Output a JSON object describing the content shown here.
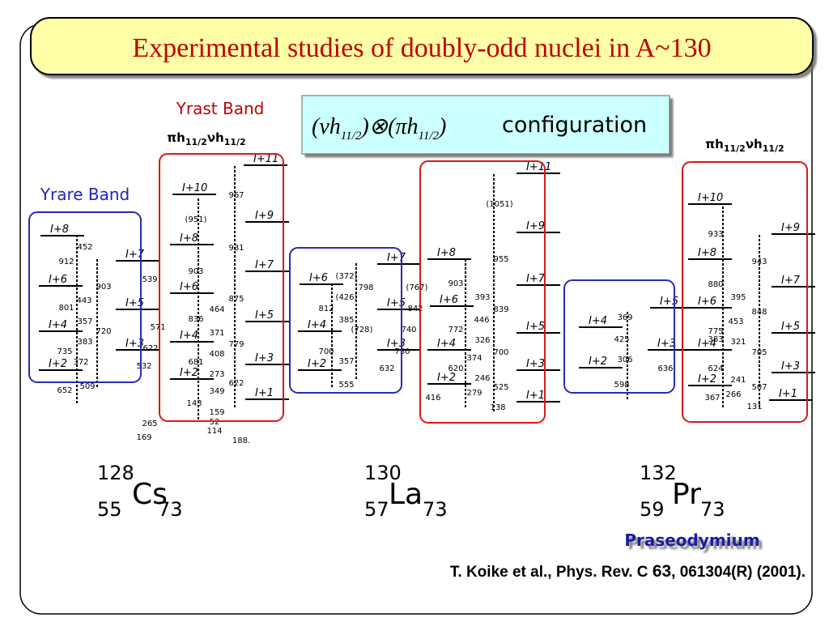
{
  "title": "Experimental studies of doubly-odd nuclei in A~130",
  "yrast_label": "Yrast Band",
  "yrare_label": "Yrare Band",
  "configuration": {
    "left": "(νh",
    "sub": "11/2",
    "mid": ")⊗(πh",
    "right": ")",
    "word": "configuration"
  },
  "header": {
    "pi": "πh",
    "nu": "νh",
    "sub": "11/2"
  },
  "schemes": [
    {
      "mass": "128",
      "z": "55",
      "symbol": "Cs",
      "n": "73",
      "levels": [
        "I+2",
        "I+4",
        "I+6",
        "I+8",
        "I+7",
        "I+5",
        "I+3",
        "I+10",
        "I+8",
        "I+6",
        "I+4",
        "I+2",
        "I+11",
        "I+9",
        "I+7",
        "I+5",
        "I+3",
        "I+1"
      ],
      "transitions": [
        "652",
        "509",
        "735",
        "372",
        "383",
        "357",
        "720",
        "801",
        "443",
        "903",
        "912",
        "452",
        "539",
        "571",
        "622",
        "532",
        "(951)",
        "903",
        "836",
        "681",
        "967",
        "931",
        "875",
        "779",
        "622",
        "464",
        "371",
        "408",
        "273",
        "349",
        "143",
        "159",
        "265",
        "52",
        "114",
        "169",
        "188."
      ]
    },
    {
      "mass": "130",
      "z": "57",
      "symbol": "La",
      "n": "73",
      "levels": [
        "I+6",
        "I+4",
        "I+2",
        "I+7",
        "I+5",
        "I+3",
        "I+8",
        "I+6",
        "I+4",
        "I+2",
        "I+11",
        "I+9",
        "I+7",
        "I+5",
        "I+3",
        "I+1"
      ],
      "transitions": [
        "(372)",
        "798",
        "(426)",
        "812",
        "385",
        "(728)",
        "700",
        "357",
        "632",
        "555",
        "(767)",
        "842",
        "740",
        "730",
        "(1051)",
        "955",
        "839",
        "700",
        "525",
        "903",
        "772",
        "620",
        "416",
        "393",
        "446",
        "326",
        "374",
        "246",
        "279",
        "138"
      ]
    },
    {
      "mass": "132",
      "z": "59",
      "symbol": "Pr",
      "n": "73",
      "levels": [
        "I+4",
        "I+2",
        "I+5",
        "I+3",
        "I+10",
        "I+8",
        "I+6",
        "I+4",
        "I+2",
        "I+9",
        "I+7",
        "I+5",
        "I+3",
        "I+1"
      ],
      "transitions": [
        "369",
        "425",
        "306",
        "598",
        "636",
        "933",
        "880",
        "775",
        "624",
        "367",
        "943",
        "848",
        "705",
        "507",
        "395",
        "453",
        "321",
        "383",
        "241",
        "266",
        "131"
      ]
    }
  ],
  "element_name": "Praseodymium",
  "citation": {
    "before": "T. Koike et al., Phys. Rev. C ",
    "volume": "63",
    "after": ", 061304(R) (2001)."
  }
}
